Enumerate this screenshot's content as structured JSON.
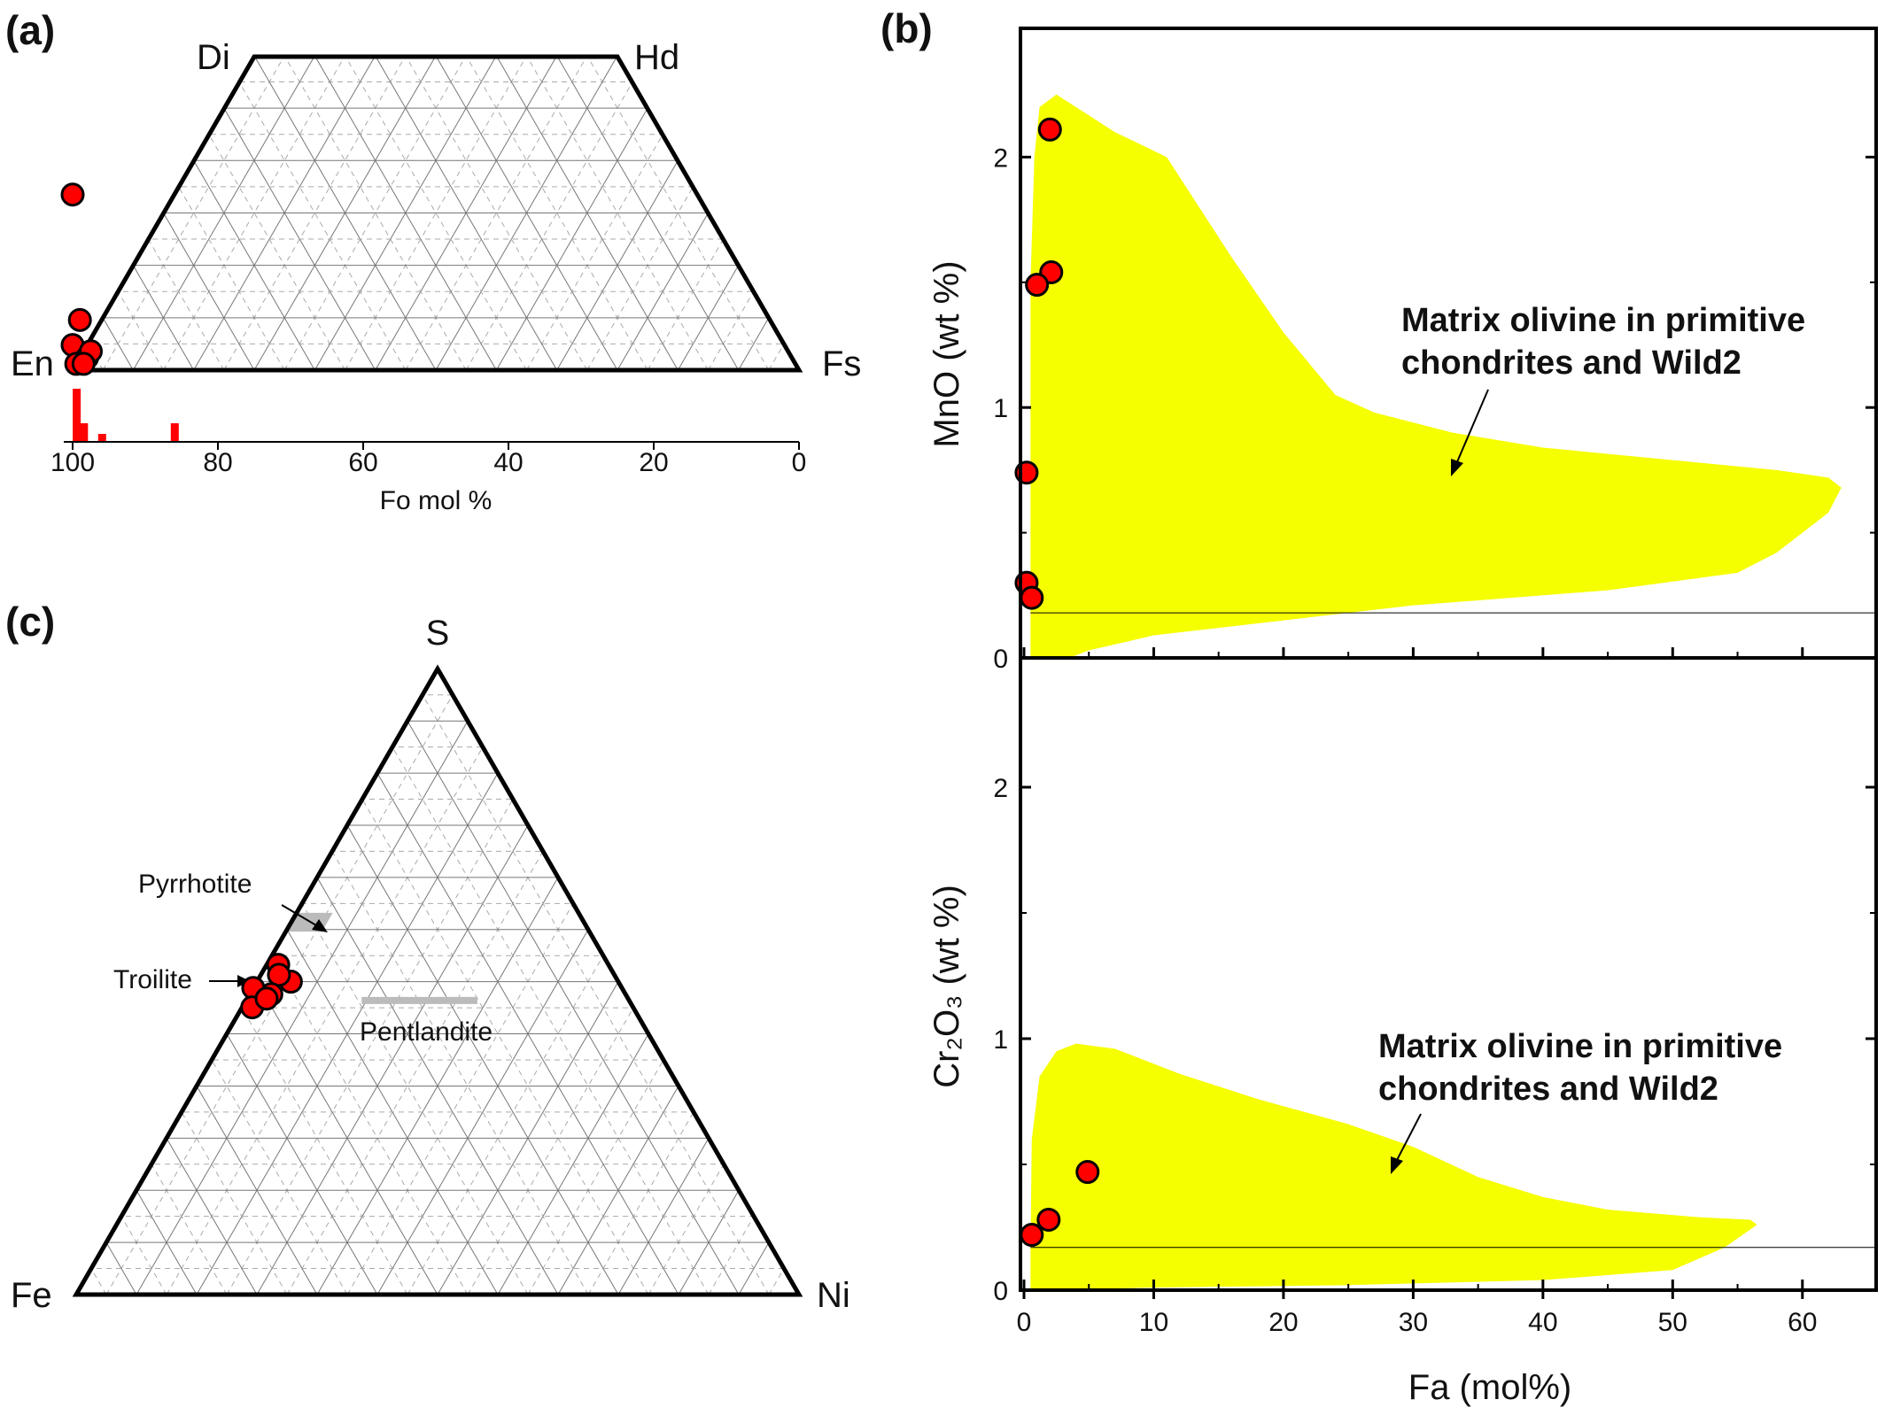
{
  "chart_data": [
    {
      "id": "a",
      "type": "scatter",
      "panel_label": "(a)",
      "subtype": "pyroxene quadrilateral",
      "vertex_labels": {
        "top_left": "Di",
        "top_right": "Hd",
        "bottom_left": "En",
        "bottom_right": "Fs"
      },
      "points_en_fs_wo": [
        {
          "en": 86,
          "wo": 28
        },
        {
          "en": 95,
          "wo": 8
        },
        {
          "en": 98,
          "wo": 4
        },
        {
          "en": 97,
          "wo": 2
        },
        {
          "en": 96,
          "wo": 3
        },
        {
          "en": 99,
          "wo": 1
        },
        {
          "en": 98,
          "wo": 1
        }
      ],
      "histogram": {
        "xlabel": "Fo mol %",
        "xticks": [
          100,
          80,
          60,
          40,
          20,
          0
        ],
        "xlim": [
          100,
          0
        ],
        "bars": [
          {
            "x": 99.5,
            "height": 1.0
          },
          {
            "x": 98.5,
            "height": 0.35
          },
          {
            "x": 96,
            "height": 0.15
          },
          {
            "x": 86,
            "height": 0.35
          }
        ]
      }
    },
    {
      "id": "b_top",
      "type": "scatter",
      "panel_label": "(b)",
      "xlim": [
        0,
        65
      ],
      "ylim": [
        0,
        2.5
      ],
      "yticks": [
        0,
        1,
        2
      ],
      "ylabel": "MnO (wt %)",
      "annotation": [
        "Matrix olivine in primitive",
        "chondrites and Wild2"
      ],
      "reference_line_y": 0.18,
      "field_outline": [
        [
          0.5,
          0.18
        ],
        [
          0.5,
          1.5
        ],
        [
          0.8,
          2.0
        ],
        [
          1.2,
          2.2
        ],
        [
          2.5,
          2.25
        ],
        [
          4,
          2.2
        ],
        [
          7,
          2.1
        ],
        [
          11,
          2.0
        ],
        [
          16,
          1.6
        ],
        [
          20,
          1.3
        ],
        [
          24,
          1.05
        ],
        [
          27,
          0.98
        ],
        [
          33,
          0.9
        ],
        [
          40,
          0.84
        ],
        [
          50,
          0.79
        ],
        [
          58,
          0.75
        ],
        [
          62,
          0.72
        ],
        [
          63,
          0.68
        ],
        [
          62,
          0.58
        ],
        [
          58,
          0.42
        ],
        [
          55,
          0.34
        ],
        [
          45,
          0.27
        ],
        [
          30,
          0.21
        ],
        [
          20,
          0.15
        ],
        [
          10,
          0.09
        ],
        [
          5,
          0.03
        ],
        [
          3.5,
          0.0
        ],
        [
          0.5,
          0.0
        ]
      ],
      "points": [
        {
          "x": 2.0,
          "y": 2.11
        },
        {
          "x": 2.1,
          "y": 1.54
        },
        {
          "x": 1.0,
          "y": 1.49
        },
        {
          "x": 0.2,
          "y": 0.74
        },
        {
          "x": 0.2,
          "y": 0.3
        },
        {
          "x": 0.6,
          "y": 0.24
        }
      ]
    },
    {
      "id": "b_bottom",
      "type": "scatter",
      "xlim": [
        0,
        65
      ],
      "ylim": [
        0,
        2.5
      ],
      "yticks": [
        0,
        1,
        2
      ],
      "xticks": [
        0,
        10,
        20,
        30,
        40,
        50,
        60
      ],
      "ylabel": "Cr₂O₃ (wt %)",
      "xlabel": "Fa (mol%)",
      "annotation": [
        "Matrix olivine in primitive",
        "chondrites and Wild2"
      ],
      "reference_line_y": 0.17,
      "field_outline": [
        [
          0.5,
          0.17
        ],
        [
          0.6,
          0.6
        ],
        [
          1.2,
          0.85
        ],
        [
          2.5,
          0.95
        ],
        [
          4,
          0.98
        ],
        [
          7,
          0.96
        ],
        [
          12,
          0.86
        ],
        [
          18,
          0.76
        ],
        [
          25,
          0.66
        ],
        [
          30,
          0.57
        ],
        [
          35,
          0.45
        ],
        [
          40,
          0.37
        ],
        [
          45,
          0.32
        ],
        [
          52,
          0.29
        ],
        [
          56,
          0.28
        ],
        [
          56.5,
          0.26
        ],
        [
          54,
          0.17
        ],
        [
          50,
          0.08
        ],
        [
          40,
          0.04
        ],
        [
          25,
          0.02
        ],
        [
          10,
          0.01
        ],
        [
          0.5,
          0.0
        ]
      ],
      "points": [
        {
          "x": 4.9,
          "y": 0.47
        },
        {
          "x": 1.9,
          "y": 0.28
        },
        {
          "x": 0.6,
          "y": 0.22
        }
      ]
    },
    {
      "id": "c",
      "type": "scatter",
      "panel_label": "(c)",
      "subtype": "ternary Fe-Ni-S",
      "vertex_labels": {
        "top": "S",
        "bottom_left": "Fe",
        "bottom_right": "Ni"
      },
      "fields": [
        {
          "label": "Pyrrhotite",
          "polygon": [
            [
              0.39,
              0.61,
              0.0
            ],
            [
              0.34,
              0.61,
              0.05
            ],
            [
              0.37,
              0.58,
              0.05
            ],
            [
              0.42,
              0.58,
              0.0
            ]
          ]
        },
        {
          "label": "Troilite",
          "at": [
            0.5,
            0.5,
            0.0
          ]
        },
        {
          "label": "Pentlandite",
          "segment": [
            [
              0.37,
              0.47,
              0.16
            ],
            [
              0.21,
              0.47,
              0.32
            ]
          ]
        }
      ],
      "points_fe_s_ni": [
        {
          "fe": 0.457,
          "s": 0.527,
          "ni": 0.016
        },
        {
          "fe": 0.453,
          "s": 0.5,
          "ni": 0.047
        },
        {
          "fe": 0.464,
          "s": 0.511,
          "ni": 0.025
        },
        {
          "fe": 0.49,
          "s": 0.48,
          "ni": 0.03
        },
        {
          "fe": 0.51,
          "s": 0.49,
          "ni": 0.0
        },
        {
          "fe": 0.527,
          "s": 0.459,
          "ni": 0.014
        },
        {
          "fe": 0.5,
          "s": 0.473,
          "ni": 0.027
        }
      ]
    }
  ]
}
